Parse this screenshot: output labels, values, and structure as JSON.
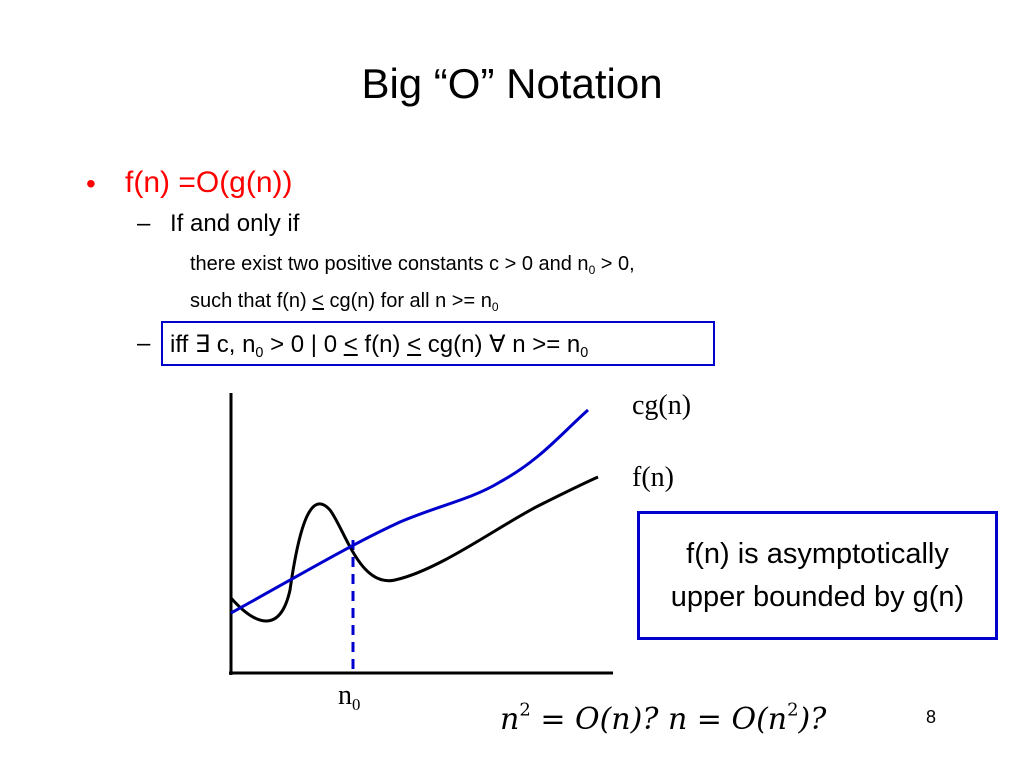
{
  "slide": {
    "title": "Big “O” Notation",
    "page_number": "8"
  },
  "bullets": {
    "marker": "•",
    "dash": "–",
    "main": "f(n) =O(g(n))",
    "sub1": "If and only if",
    "line2_a": "there exist two positive constants c > 0 and n",
    "line2_sub": "0",
    "line2_b": " > 0,",
    "line3_a": "such that f(n) ",
    "line3_le": "<",
    "line3_b": " cg(n) for all n >= n",
    "line3_sub": "0",
    "iff_a": "iff ∃ c, n",
    "iff_sub": "0",
    "iff_b": " > 0 | 0 ",
    "iff_le1": "<",
    "iff_c": " f(n) ",
    "iff_le2": "<",
    "iff_d": " cg(n) ∀ n >= n",
    "iff_sub2": "0"
  },
  "graph": {
    "label_cg": "cg(n)",
    "label_f": "f(n)",
    "label_n": "n",
    "label_n_sub": "0",
    "colors": {
      "cg": "#0000cc",
      "f": "#000000",
      "threshold": "#0000cc"
    }
  },
  "callout": {
    "line1": "f(n) is asymptotically",
    "line2": "upper bounded by g(n)"
  },
  "question": {
    "q1_base": "n",
    "q1_exp": "2",
    "q1_rest": " = O(n)?  ",
    "q2_a": "n = O(n",
    "q2_exp": "2",
    "q2_b": ")?"
  }
}
